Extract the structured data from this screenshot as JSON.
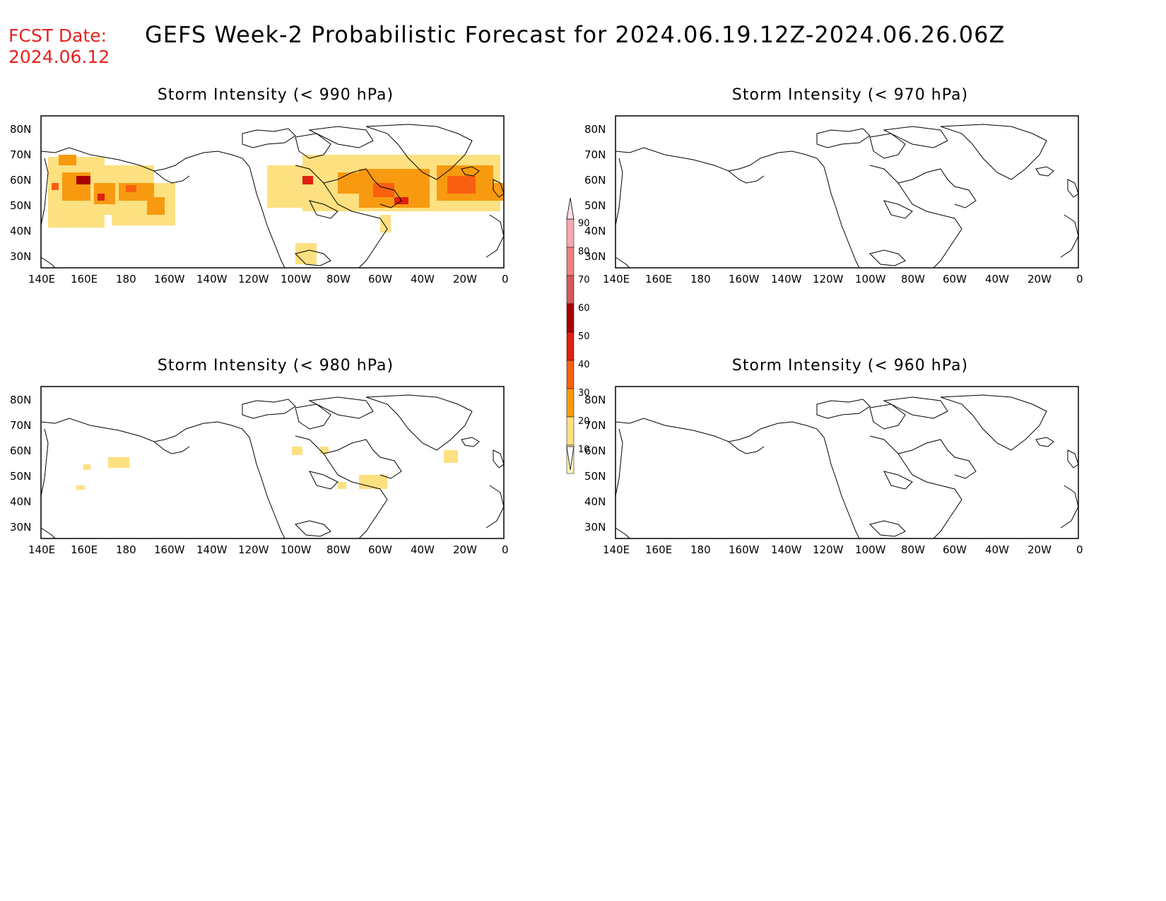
{
  "header": {
    "fcst_label": "FCST Date:",
    "fcst_date": "2024.06.12",
    "title": "GEFS Week-2 Probabilistic Forecast for 2024.06.19.12Z-2024.06.26.06Z"
  },
  "axes": {
    "lon_labels": [
      "140E",
      "160E",
      "180",
      "160W",
      "140W",
      "120W",
      "100W",
      "80W",
      "60W",
      "40W",
      "20W",
      "0"
    ],
    "lat_labels": [
      "80N",
      "70N",
      "60N",
      "50N",
      "40N",
      "30N"
    ]
  },
  "panels": [
    {
      "title": "Storm Intensity (< 990 hPa)"
    },
    {
      "title": "Storm Intensity (< 970 hPa)"
    },
    {
      "title": "Storm Intensity (< 980 hPa)"
    },
    {
      "title": "Storm Intensity (< 960 hPa)"
    }
  ],
  "colorbar": {
    "labels": [
      "90",
      "80",
      "70",
      "60",
      "50",
      "40",
      "30",
      "20",
      "10"
    ],
    "colors": [
      "#f6a8b0",
      "#f08080",
      "#d85858",
      "#a80000",
      "#e02010",
      "#f86010",
      "#f89a10",
      "#fde080",
      "#fff6b8"
    ]
  }
}
